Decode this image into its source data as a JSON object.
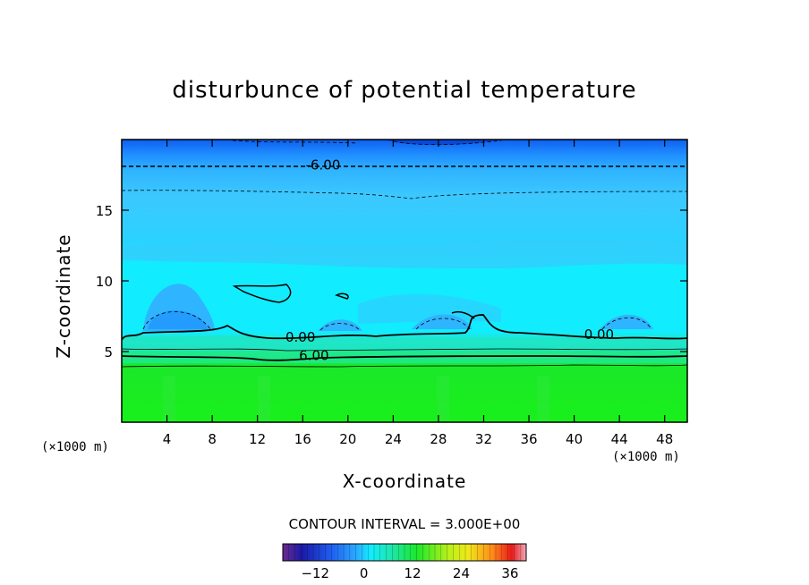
{
  "chart_data": {
    "type": "heatmap",
    "title": "disturbunce of potential temperature",
    "xlabel": "X-coordinate",
    "ylabel": "Z-coordinate",
    "x_unit": "(×1000 m)",
    "x_ticks": [
      4,
      8,
      12,
      16,
      20,
      24,
      28,
      32,
      36,
      40,
      44,
      48
    ],
    "y_ticks": [
      5,
      10,
      15
    ],
    "xlim": [
      0,
      50
    ],
    "ylim": [
      0,
      20
    ],
    "contour_interval": "CONTOUR INTERVAL = 3.000E+00",
    "contour_labels": [
      {
        "text": "-6.00",
        "x": 17.8,
        "z": 18.2
      },
      {
        "text": "0.00",
        "x": 15.8,
        "z": 6.0
      },
      {
        "text": "0.00",
        "x": 42.2,
        "z": 6.2
      },
      {
        "text": "6.00",
        "x": 17.0,
        "z": 4.7
      }
    ],
    "colorbar": {
      "range": [
        -20,
        40
      ],
      "ticks": [
        -12,
        0,
        12,
        24,
        36
      ]
    },
    "colors": {
      "deep_blue": "#0f5ff0",
      "blue": "#1e8cff",
      "sky": "#2fb4ff",
      "light_sky": "#3cc8ff",
      "cyan": "#12ecff",
      "cyan_green": "#1ee6c8",
      "green": "#1ae82a",
      "bright_green": "#19f01a"
    }
  }
}
